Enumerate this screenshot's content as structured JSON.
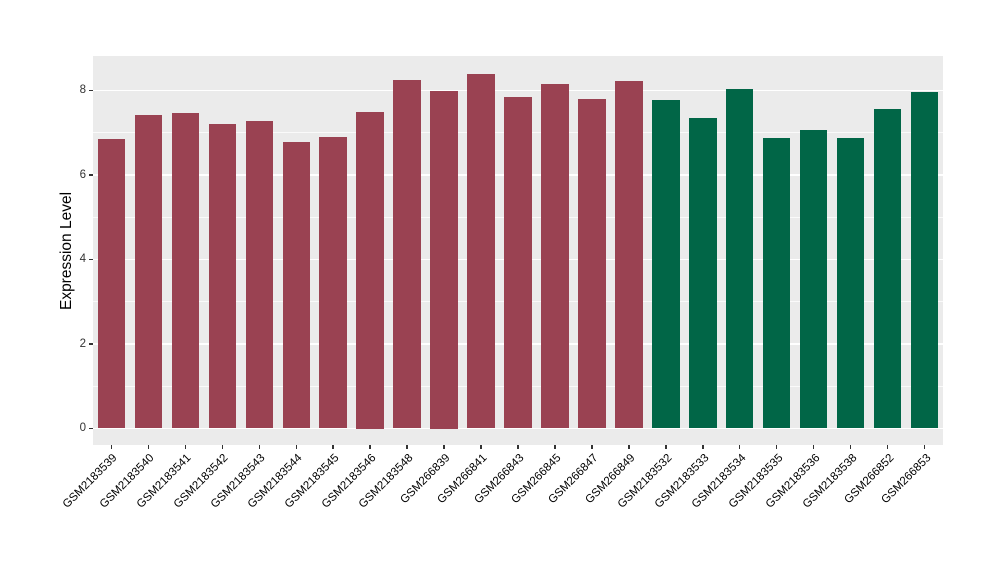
{
  "chart_data": {
    "type": "bar",
    "title": "",
    "xlabel": "",
    "ylabel": "Expression Level",
    "ylim": [
      0,
      8.82
    ],
    "yticks": [
      0,
      2,
      4,
      6,
      8
    ],
    "yticks_minor": [
      1,
      3,
      5,
      7
    ],
    "grid": "major and minor horizontal white gridlines on gray panel",
    "legend_position": "none",
    "categories": [
      "GSM2183539",
      "GSM2183540",
      "GSM2183541",
      "GSM2183542",
      "GSM2183543",
      "GSM2183544",
      "GSM2183545",
      "GSM2183546",
      "GSM2183548",
      "GSM266839",
      "GSM266841",
      "GSM266843",
      "GSM266845",
      "GSM266847",
      "GSM266849",
      "GSM2183532",
      "GSM2183533",
      "GSM2183534",
      "GSM2183535",
      "GSM2183536",
      "GSM2183538",
      "GSM266852",
      "GSM266853"
    ],
    "values": [
      6.86,
      7.43,
      7.47,
      7.21,
      7.28,
      6.77,
      6.89,
      7.5,
      8.26,
      8.0,
      8.4,
      7.84,
      8.15,
      7.8,
      8.23,
      7.77,
      7.34,
      8.03,
      6.87,
      7.07,
      6.87,
      7.57,
      7.96
    ],
    "bar_group_index": [
      0,
      0,
      0,
      0,
      0,
      0,
      0,
      0,
      0,
      0,
      0,
      0,
      0,
      0,
      0,
      1,
      1,
      1,
      1,
      1,
      1,
      1,
      1
    ],
    "groups": [
      {
        "name": "group-1-maroon",
        "color": "#9A4252"
      },
      {
        "name": "group-2-green",
        "color": "#016647"
      }
    ]
  },
  "style": {
    "panel_bg": "#EBEBEB",
    "grid_color": "#FFFFFF",
    "tick_mark_color": "#333333",
    "ytick_label_color": "#333333",
    "xtick_label_color": "#000000",
    "axis_title_color": "#000000",
    "figure_bg": "#FFFFFF"
  }
}
